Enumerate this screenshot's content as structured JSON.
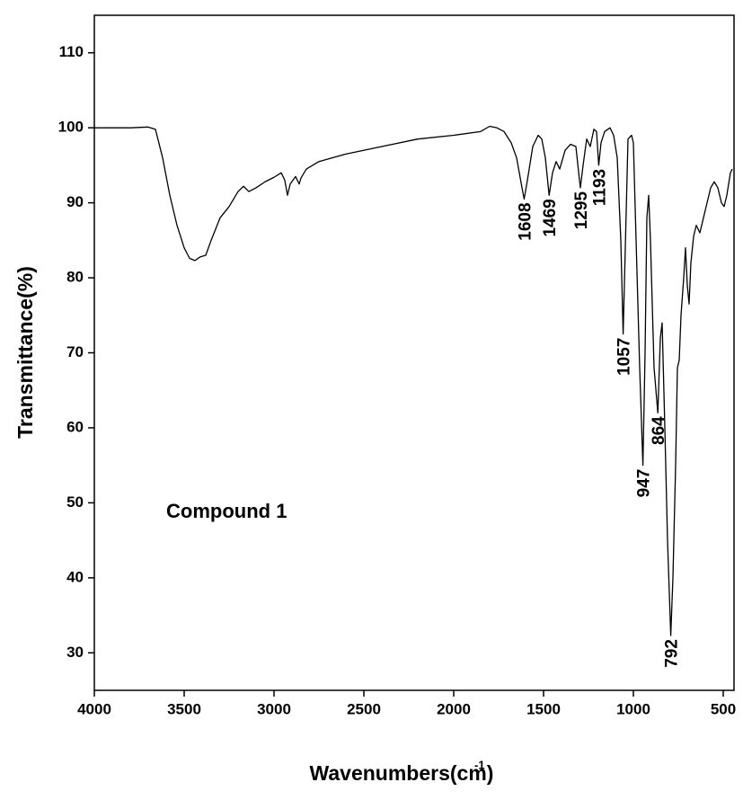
{
  "chart_data": {
    "type": "line",
    "xlabel": "Wavenumbers(cm)",
    "xlabel_superscript": "-1",
    "ylabel": "Transmittance(%)",
    "annotation": "Compound 1",
    "color": "#000000",
    "xlim": [
      4000,
      440
    ],
    "ylim": [
      25,
      115
    ],
    "xticks": [
      4000,
      3500,
      3000,
      2500,
      2000,
      1500,
      1000,
      500
    ],
    "yticks": [
      30,
      40,
      50,
      60,
      70,
      80,
      90,
      100,
      110
    ],
    "grid": false,
    "x": [
      4000,
      3800,
      3700,
      3660,
      3620,
      3580,
      3540,
      3500,
      3470,
      3440,
      3410,
      3380,
      3350,
      3300,
      3250,
      3200,
      3170,
      3140,
      3100,
      3050,
      3000,
      2960,
      2940,
      2925,
      2910,
      2880,
      2860,
      2850,
      2820,
      2750,
      2600,
      2400,
      2200,
      2000,
      1850,
      1800,
      1760,
      1720,
      1680,
      1650,
      1620,
      1608,
      1590,
      1560,
      1530,
      1510,
      1490,
      1469,
      1450,
      1430,
      1410,
      1380,
      1350,
      1320,
      1300,
      1295,
      1280,
      1260,
      1240,
      1220,
      1205,
      1193,
      1180,
      1160,
      1130,
      1110,
      1090,
      1070,
      1057,
      1045,
      1030,
      1010,
      1000,
      985,
      965,
      947,
      935,
      925,
      915,
      905,
      885,
      864,
      850,
      840,
      825,
      810,
      792,
      780,
      765,
      755,
      745,
      735,
      720,
      710,
      700,
      690,
      680,
      665,
      650,
      630,
      610,
      590,
      570,
      550,
      530,
      510,
      495,
      480,
      460,
      450
    ],
    "values": [
      100,
      100,
      100.1,
      99.8,
      96,
      91,
      87,
      84,
      82.6,
      82.3,
      82.8,
      83,
      85,
      88,
      89.5,
      91.5,
      92.2,
      91.5,
      92,
      92.8,
      93.4,
      94,
      93,
      91,
      92.5,
      93.5,
      92.5,
      93.3,
      94.5,
      95.5,
      96.5,
      97.5,
      98.5,
      99,
      99.5,
      100.2,
      100,
      99.5,
      98,
      96,
      92,
      90.5,
      93,
      97.5,
      99,
      98.5,
      96,
      91,
      94,
      95.5,
      94.5,
      97,
      97.8,
      97.5,
      93,
      92,
      95,
      98.5,
      97.5,
      99.8,
      99.5,
      95,
      98,
      99.5,
      100,
      99,
      96,
      85,
      72.5,
      84,
      98.5,
      99,
      98,
      85,
      68,
      55,
      70,
      88,
      91,
      85,
      68,
      62,
      72,
      74,
      60,
      45,
      32.3,
      40,
      55,
      68,
      69,
      75,
      80,
      84,
      79,
      76.5,
      82,
      85.5,
      87,
      86,
      88,
      90,
      92,
      92.8,
      92,
      90,
      89.5,
      91,
      94,
      94.5
    ],
    "peaks": [
      {
        "text": "1608",
        "x": 1608,
        "y": 90.5
      },
      {
        "text": "1469",
        "x": 1469,
        "y": 91
      },
      {
        "text": "1295",
        "x": 1295,
        "y": 92
      },
      {
        "text": "1193",
        "x": 1193,
        "y": 95
      },
      {
        "text": "1057",
        "x": 1057,
        "y": 72.5
      },
      {
        "text": "947",
        "x": 947,
        "y": 55
      },
      {
        "text": "864",
        "x": 864,
        "y": 62
      },
      {
        "text": "792",
        "x": 792,
        "y": 32.3
      }
    ]
  }
}
